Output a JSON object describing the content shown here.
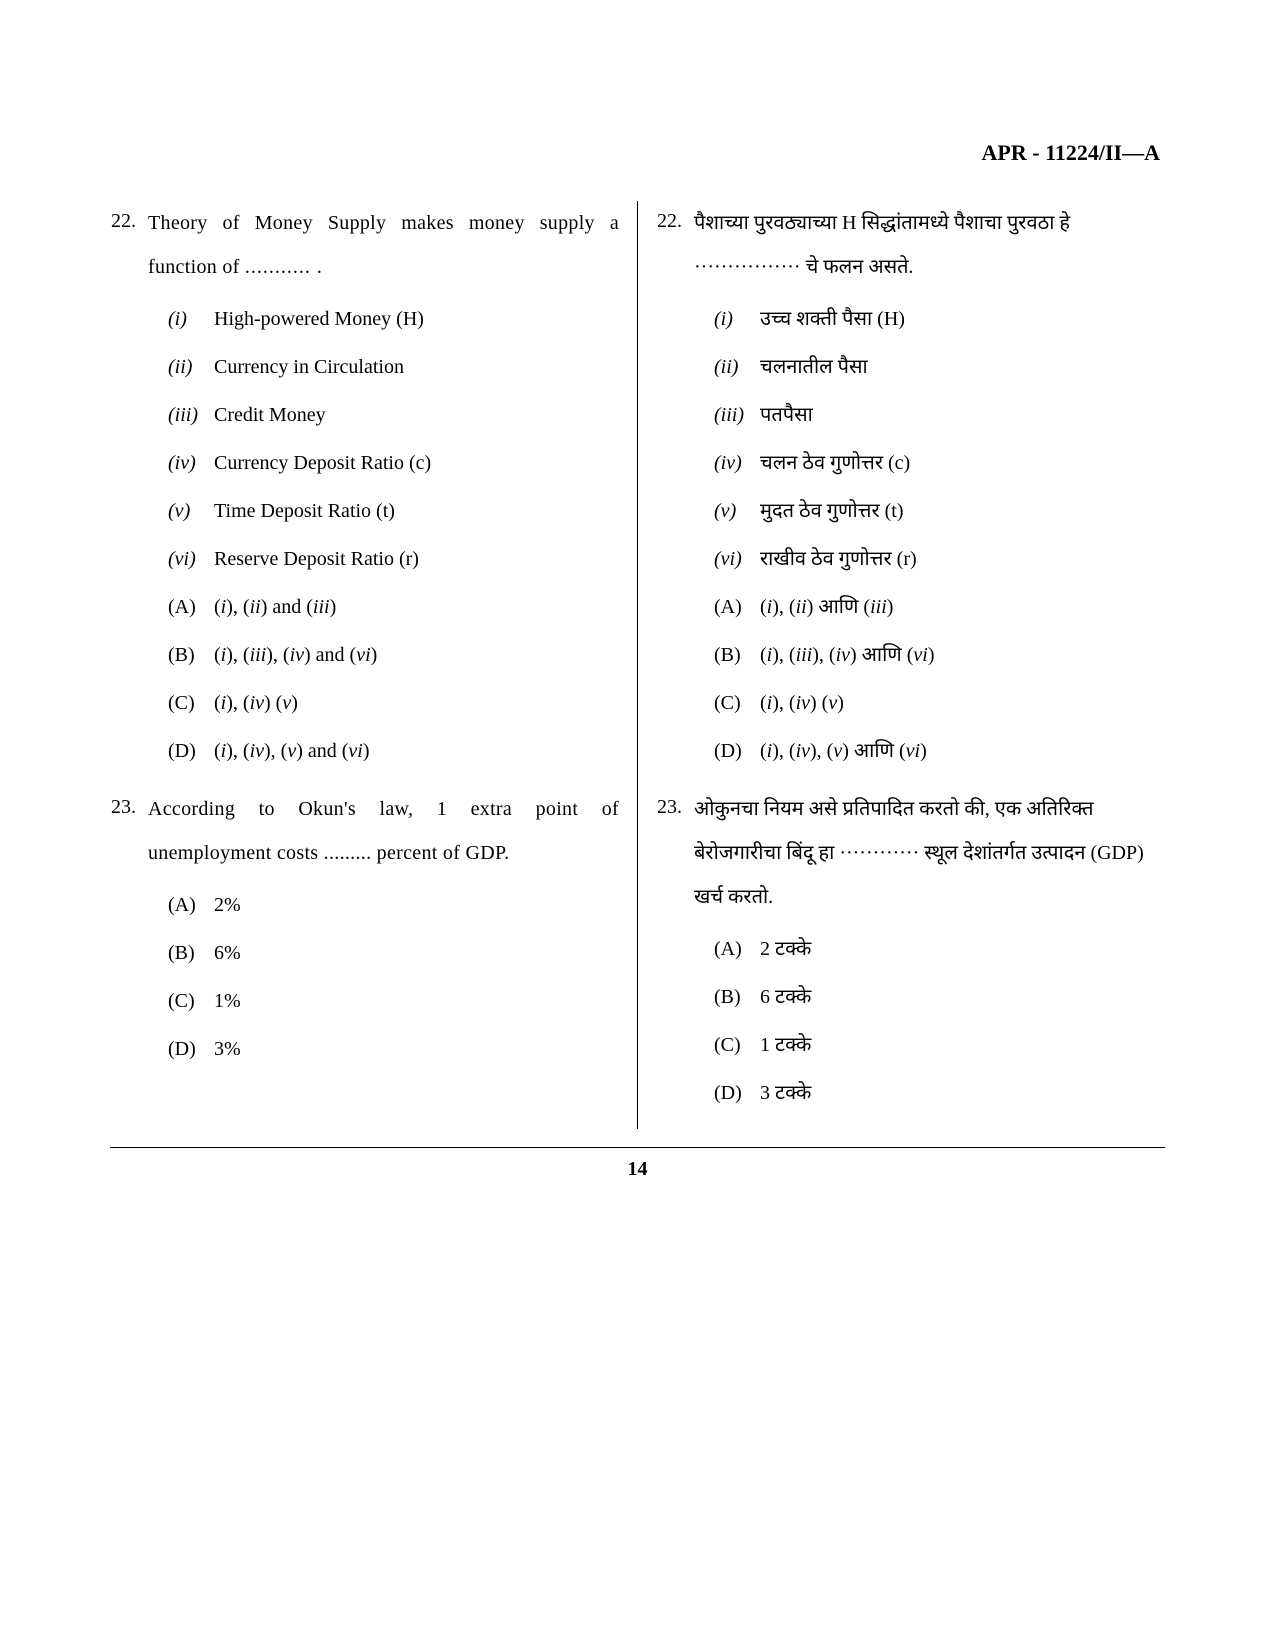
{
  "header": "APR - 11224/II—A",
  "page_number": "14",
  "left": {
    "q22": {
      "num": "22.",
      "stem_part1": "Theory of Money Supply makes money supply a function of ",
      "stem_blank": "........... .",
      "romans": [
        {
          "marker": "(i)",
          "text": "High-powered Money (H)"
        },
        {
          "marker": "(ii)",
          "text": "Currency in Circulation"
        },
        {
          "marker": "(iii)",
          "text": "Credit Money"
        },
        {
          "marker": "(iv)",
          "text": "Currency Deposit Ratio (c)"
        },
        {
          "marker": "(v)",
          "text": "Time Deposit Ratio (t)"
        },
        {
          "marker": "(vi)",
          "text": "Reserve Deposit Ratio (r)"
        }
      ],
      "answers": [
        {
          "marker": "(A)",
          "text": "(i), (ii) and (iii)"
        },
        {
          "marker": "(B)",
          "text": "(i), (iii), (iv) and (vi)"
        },
        {
          "marker": "(C)",
          "text": "(i), (iv) (v)"
        },
        {
          "marker": "(D)",
          "text": "(i), (iv), (v) and (vi)"
        }
      ]
    },
    "q23": {
      "num": "23.",
      "stem": "According to Okun's law, 1 extra point of unemployment costs ......... percent of GDP.",
      "answers": [
        {
          "marker": "(A)",
          "text": "2%"
        },
        {
          "marker": "(B)",
          "text": "6%"
        },
        {
          "marker": "(C)",
          "text": "1%"
        },
        {
          "marker": "(D)",
          "text": "3%"
        }
      ]
    }
  },
  "right": {
    "q22": {
      "num": "22.",
      "stem": "पैशाच्या पुरवठ्याच्या H सिद्धांतामध्ये पैशाचा पुरवठा हे ················ चे फलन असते.",
      "romans": [
        {
          "marker": "(i)",
          "text": "उच्च शक्ती पैसा (H)"
        },
        {
          "marker": "(ii)",
          "text": "चलनातील पैसा"
        },
        {
          "marker": "(iii)",
          "text": "पतपैसा"
        },
        {
          "marker": "(iv)",
          "text": "चलन ठेव गुणोत्तर (c)"
        },
        {
          "marker": "(v)",
          "text": "मुदत ठेव गुणोत्तर (t)"
        },
        {
          "marker": "(vi)",
          "text": "राखीव ठेव गुणोत्तर (r)"
        }
      ],
      "answers": [
        {
          "marker": "(A)",
          "text": "(i), (ii) आणि (iii)"
        },
        {
          "marker": "(B)",
          "text": "(i), (iii), (iv) आणि (vi)"
        },
        {
          "marker": "(C)",
          "text": "(i), (iv) (v)"
        },
        {
          "marker": "(D)",
          "text": "(i), (iv), (v) आणि (vi)"
        }
      ]
    },
    "q23": {
      "num": "23.",
      "stem": "ओकुनचा नियम असे प्रतिपादित करतो की, एक अतिरिक्त बेरोजगारीचा बिंदू हा ············ स्थूल देशांतर्गत उत्पादन (GDP) खर्च करतो.",
      "answers": [
        {
          "marker": "(A)",
          "text": "2 टक्के"
        },
        {
          "marker": "(B)",
          "text": "6 टक्के"
        },
        {
          "marker": "(C)",
          "text": "1 टक्के"
        },
        {
          "marker": "(D)",
          "text": "3 टक्के"
        }
      ]
    }
  }
}
